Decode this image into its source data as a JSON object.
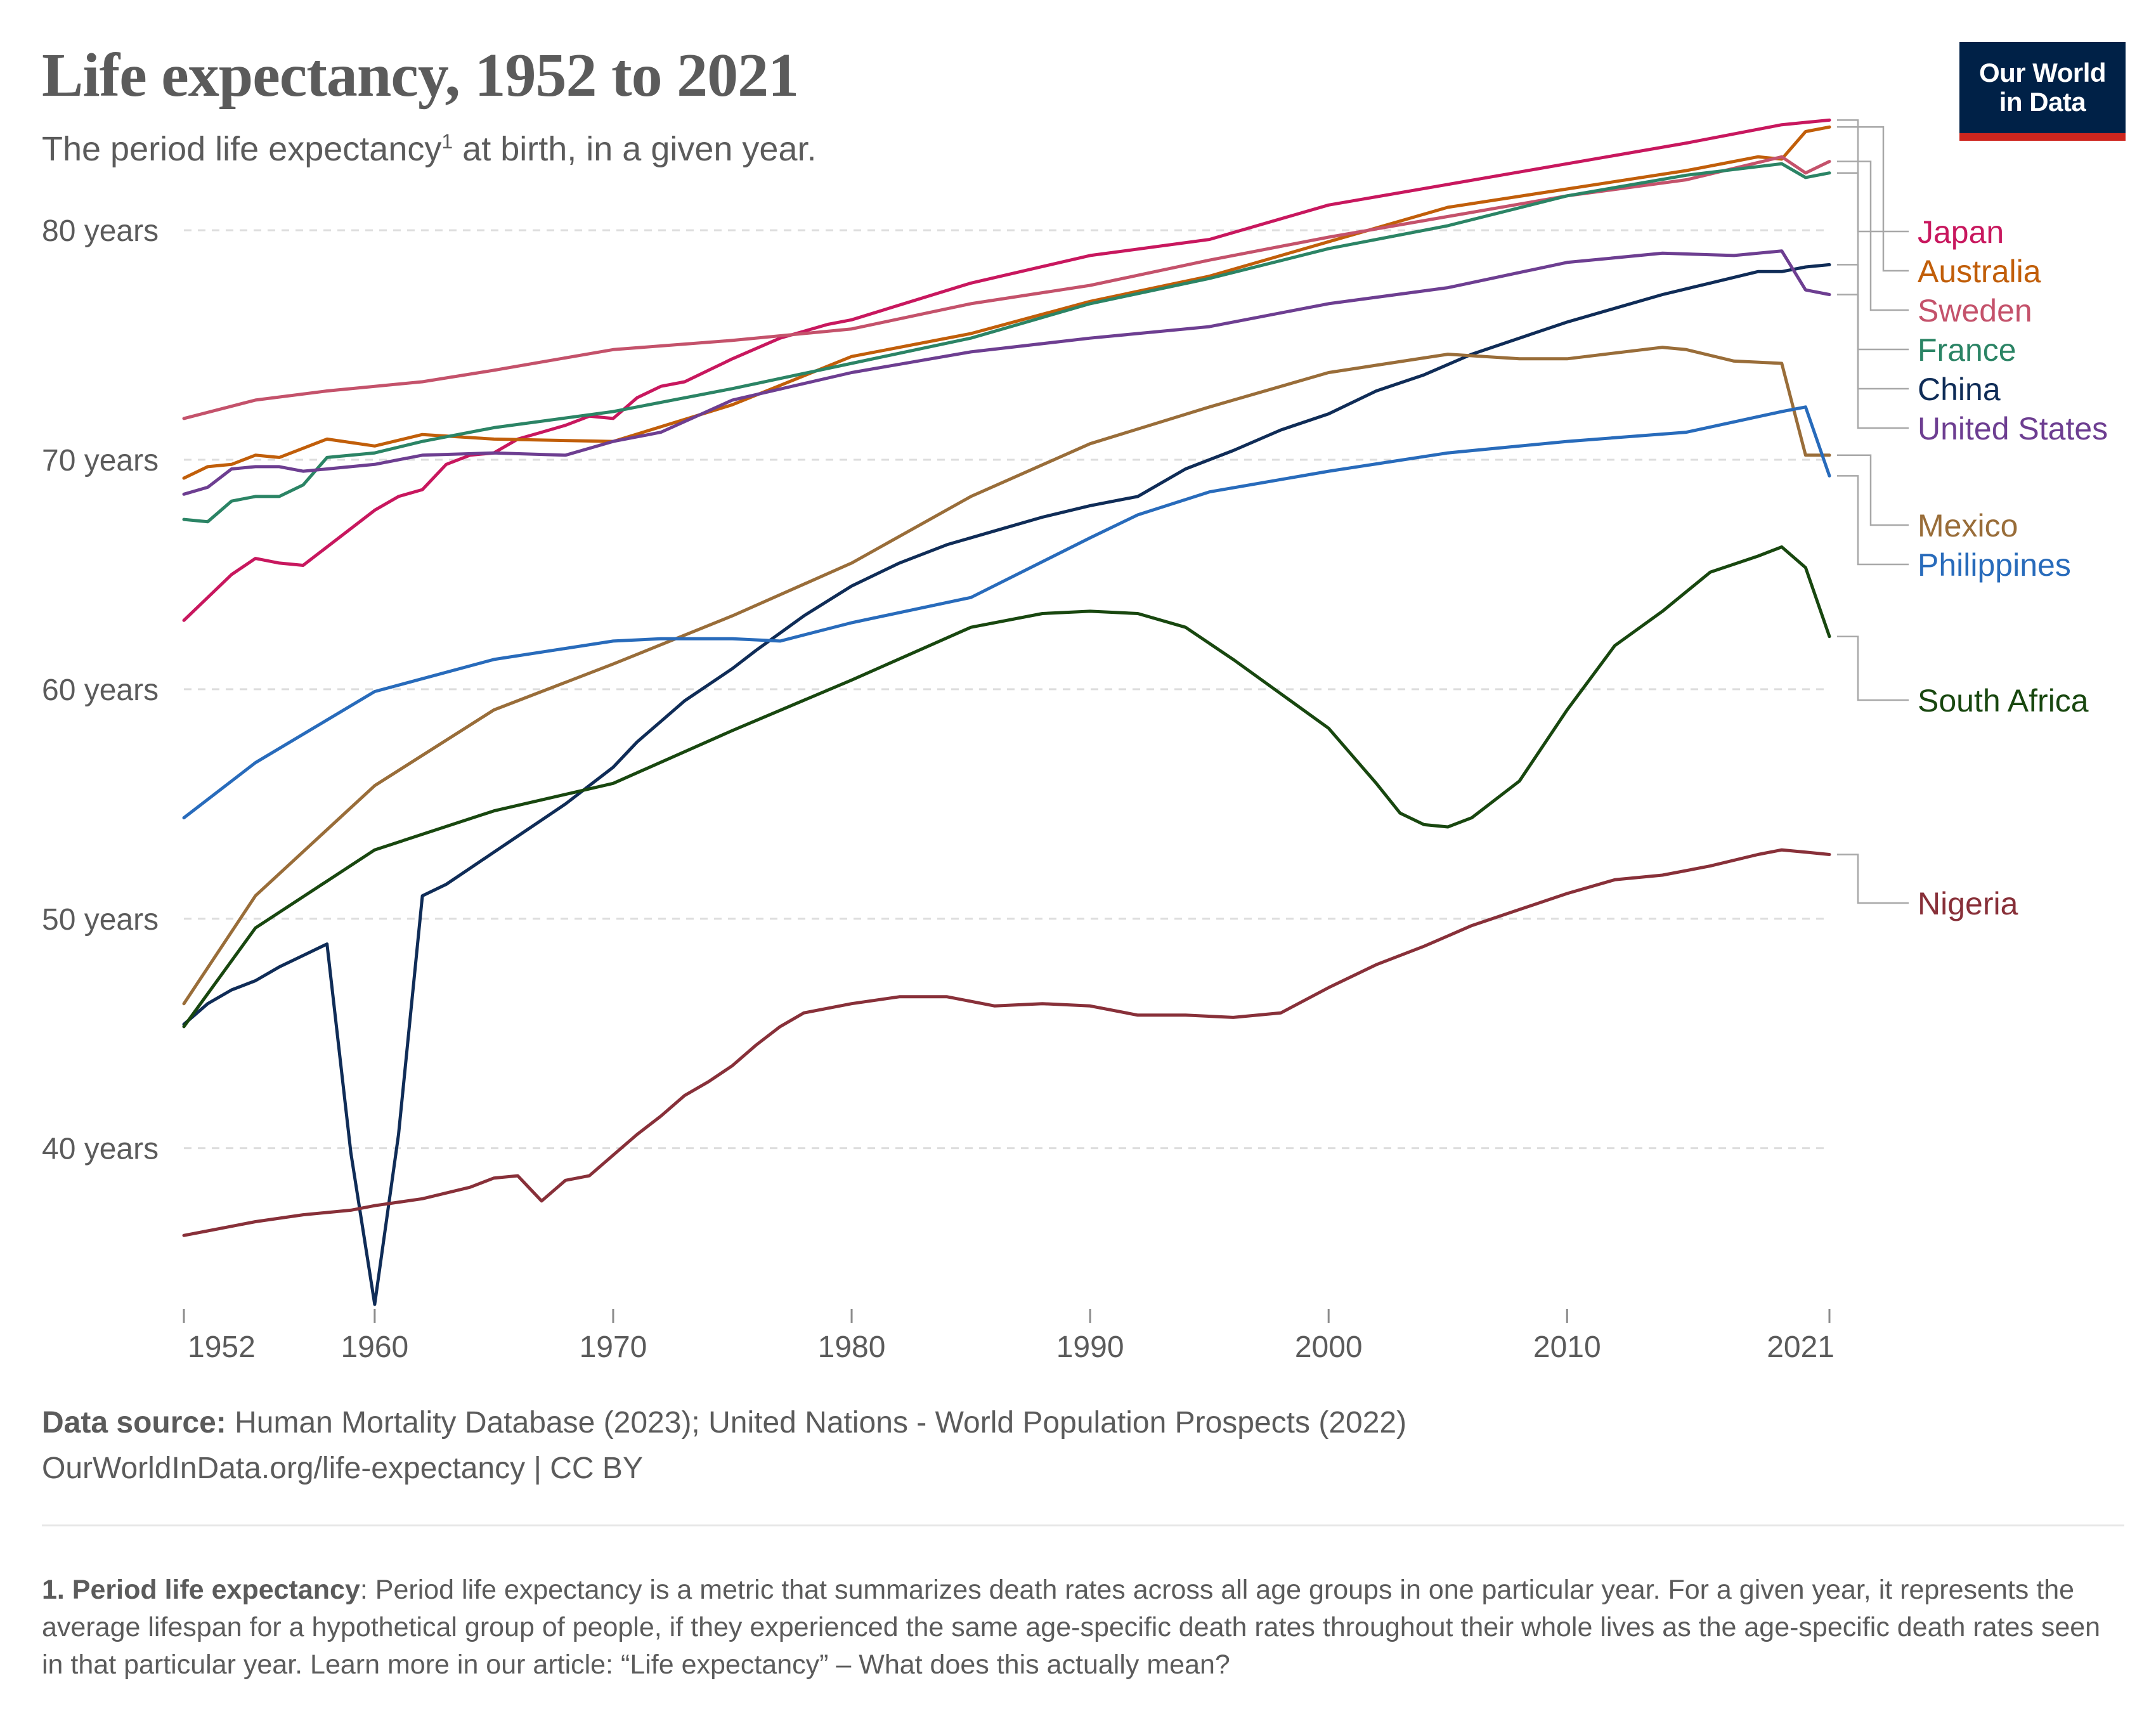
{
  "header": {
    "title": "Life expectancy, 1952 to 2021",
    "subtitle_prefix": "The period life expectancy",
    "subtitle_sup": "1",
    "subtitle_suffix": " at birth, in a given year.",
    "logo_line1": "Our World",
    "logo_line2": "in Data"
  },
  "footer": {
    "source_label": "Data source:",
    "source_text": " Human Mortality Database (2023); United Nations - World Population Prospects (2022)",
    "url_text": "OurWorldInData.org/life-expectancy | CC BY",
    "note_label": "1. Period life expectancy",
    "note_text": ": Period life expectancy is a metric that summarizes death rates across all age groups in one particular year. For a given year, it represents the average lifespan for a hypothetical group of people, if they experienced the same age-specific death rates throughout their whole lives as the age-specific death rates seen in that particular year. Learn more in our article: “Life expectancy” – What does this actually mean?"
  },
  "colors": {
    "grid": "#dddddd",
    "axis_text": "#5b5b5b",
    "logo_bg": "#002147",
    "logo_accent": "#ce261e"
  },
  "chart_data": {
    "type": "line",
    "title": "Life expectancy, 1952 to 2021",
    "subtitle": "The period life expectancy¹ at birth, in a given year.",
    "xlabel": "",
    "ylabel": "",
    "xlim": [
      1952,
      2021
    ],
    "ylim": [
      33,
      86
    ],
    "x_ticks": [
      1952,
      1960,
      1970,
      1980,
      1990,
      2000,
      2010,
      2021
    ],
    "y_ticks": [
      40,
      50,
      60,
      70,
      80
    ],
    "y_tick_labels": [
      "40 years",
      "50 years",
      "60 years",
      "70 years",
      "80 years"
    ],
    "grid": "horizontal dashed",
    "legend": "right, labels at line ends",
    "series": [
      {
        "name": "Japan",
        "color": "#c8175e",
        "x": [
          1952,
          1954,
          1955,
          1956,
          1957,
          1960,
          1961,
          1962,
          1963,
          1964,
          1965,
          1966,
          1967,
          1968,
          1969,
          1970,
          1971,
          1972,
          1973,
          1974,
          1975,
          1977,
          1978,
          1979,
          1980,
          1985,
          1990,
          1995,
          2000,
          2005,
          2010,
          2015,
          2019,
          2020,
          2021
        ],
        "y": [
          63.0,
          65.0,
          65.7,
          65.5,
          65.4,
          67.8,
          68.4,
          68.7,
          69.8,
          70.2,
          70.3,
          70.9,
          71.2,
          71.5,
          71.9,
          71.8,
          72.7,
          73.2,
          73.4,
          73.9,
          74.4,
          75.3,
          75.6,
          75.9,
          76.1,
          77.7,
          78.9,
          79.6,
          81.1,
          82.0,
          82.9,
          83.8,
          84.6,
          84.7,
          84.8
        ]
      },
      {
        "name": "Australia",
        "color": "#c15e09",
        "x": [
          1952,
          1953,
          1954,
          1955,
          1956,
          1958,
          1960,
          1962,
          1965,
          1970,
          1975,
          1980,
          1985,
          1990,
          1995,
          2000,
          2005,
          2010,
          2015,
          2018,
          2019,
          2020,
          2021
        ],
        "y": [
          69.2,
          69.7,
          69.8,
          70.2,
          70.1,
          70.9,
          70.6,
          71.1,
          70.9,
          70.8,
          72.4,
          74.5,
          75.5,
          76.9,
          78.0,
          79.5,
          81.0,
          81.8,
          82.6,
          83.2,
          83.1,
          84.3,
          84.5
        ]
      },
      {
        "name": "Sweden",
        "color": "#c4526b",
        "x": [
          1952,
          1955,
          1958,
          1960,
          1962,
          1965,
          1970,
          1975,
          1980,
          1985,
          1990,
          1995,
          2000,
          2005,
          2010,
          2015,
          2019,
          2020,
          2021
        ],
        "y": [
          71.8,
          72.6,
          73.0,
          73.2,
          73.4,
          73.9,
          74.8,
          75.2,
          75.7,
          76.8,
          77.6,
          78.7,
          79.7,
          80.6,
          81.5,
          82.2,
          83.2,
          82.5,
          83.0
        ]
      },
      {
        "name": "France",
        "color": "#2b8465",
        "x": [
          1952,
          1953,
          1954,
          1955,
          1956,
          1957,
          1958,
          1960,
          1962,
          1965,
          1970,
          1975,
          1980,
          1985,
          1990,
          1995,
          2000,
          2005,
          2010,
          2015,
          2019,
          2020,
          2021
        ],
        "y": [
          67.4,
          67.3,
          68.2,
          68.4,
          68.4,
          68.9,
          70.1,
          70.3,
          70.8,
          71.4,
          72.1,
          73.1,
          74.2,
          75.3,
          76.8,
          77.9,
          79.2,
          80.2,
          81.5,
          82.4,
          82.9,
          82.3,
          82.5
        ]
      },
      {
        "name": "China",
        "color": "#0f2c57",
        "x": [
          1952,
          1953,
          1954,
          1955,
          1956,
          1957,
          1958,
          1959,
          1960,
          1961,
          1962,
          1963,
          1964,
          1965,
          1966,
          1967,
          1968,
          1969,
          1970,
          1971,
          1972,
          1973,
          1974,
          1975,
          1976,
          1978,
          1980,
          1982,
          1984,
          1986,
          1988,
          1990,
          1992,
          1994,
          1996,
          1998,
          2000,
          2002,
          2004,
          2006,
          2008,
          2010,
          2012,
          2014,
          2016,
          2018,
          2019,
          2020,
          2021
        ],
        "y": [
          45.4,
          46.3,
          46.9,
          47.3,
          47.9,
          48.4,
          48.9,
          39.8,
          33.2,
          40.6,
          51.0,
          51.5,
          52.2,
          52.9,
          53.6,
          54.3,
          55.0,
          55.8,
          56.6,
          57.7,
          58.6,
          59.5,
          60.2,
          60.9,
          61.7,
          63.2,
          64.5,
          65.5,
          66.3,
          66.9,
          67.5,
          68.0,
          68.4,
          69.6,
          70.4,
          71.3,
          72.0,
          73.0,
          73.7,
          74.6,
          75.3,
          76.0,
          76.6,
          77.2,
          77.7,
          78.2,
          78.2,
          78.4,
          78.5
        ]
      },
      {
        "name": "United States",
        "color": "#6d3e91",
        "x": [
          1952,
          1953,
          1954,
          1955,
          1956,
          1957,
          1958,
          1960,
          1962,
          1965,
          1968,
          1970,
          1972,
          1975,
          1980,
          1985,
          1990,
          1995,
          2000,
          2005,
          2010,
          2014,
          2017,
          2019,
          2020,
          2021
        ],
        "y": [
          68.5,
          68.8,
          69.6,
          69.7,
          69.7,
          69.5,
          69.6,
          69.8,
          70.2,
          70.3,
          70.2,
          70.8,
          71.2,
          72.6,
          73.8,
          74.7,
          75.3,
          75.8,
          76.8,
          77.5,
          78.6,
          79.0,
          78.9,
          79.1,
          77.4,
          77.2
        ]
      },
      {
        "name": "Mexico",
        "color": "#996d39",
        "x": [
          1952,
          1955,
          1960,
          1965,
          1970,
          1975,
          1980,
          1985,
          1990,
          1995,
          2000,
          2005,
          2008,
          2010,
          2014,
          2015,
          2017,
          2019,
          2020,
          2021
        ],
        "y": [
          46.3,
          51.0,
          55.8,
          59.1,
          61.1,
          63.2,
          65.5,
          68.4,
          70.7,
          72.3,
          73.8,
          74.6,
          74.4,
          74.4,
          74.9,
          74.8,
          74.3,
          74.2,
          70.2,
          70.2
        ]
      },
      {
        "name": "Philippines",
        "color": "#286bbb",
        "x": [
          1952,
          1955,
          1960,
          1965,
          1970,
          1972,
          1975,
          1977,
          1980,
          1985,
          1990,
          1992,
          1995,
          2000,
          2005,
          2010,
          2015,
          2019,
          2020,
          2021
        ],
        "y": [
          54.4,
          56.8,
          59.9,
          61.3,
          62.1,
          62.2,
          62.2,
          62.1,
          62.9,
          64.0,
          66.6,
          67.6,
          68.6,
          69.5,
          70.3,
          70.8,
          71.2,
          72.1,
          72.3,
          69.3
        ]
      },
      {
        "name": "South Africa",
        "color": "#18470f",
        "x": [
          1952,
          1955,
          1960,
          1965,
          1970,
          1975,
          1980,
          1985,
          1988,
          1990,
          1992,
          1994,
          1996,
          1998,
          2000,
          2002,
          2003,
          2004,
          2005,
          2006,
          2008,
          2010,
          2012,
          2014,
          2016,
          2018,
          2019,
          2020,
          2021
        ],
        "y": [
          45.3,
          49.6,
          53.0,
          54.7,
          55.9,
          58.2,
          60.4,
          62.7,
          63.3,
          63.4,
          63.3,
          62.7,
          61.3,
          59.8,
          58.3,
          55.9,
          54.6,
          54.1,
          54.0,
          54.4,
          56.0,
          59.1,
          61.9,
          63.4,
          65.1,
          65.8,
          66.2,
          65.3,
          62.3
        ]
      },
      {
        "name": "Nigeria",
        "color": "#883039",
        "x": [
          1952,
          1953,
          1955,
          1957,
          1959,
          1960,
          1962,
          1964,
          1965,
          1966,
          1967,
          1968,
          1969,
          1970,
          1971,
          1972,
          1973,
          1974,
          1975,
          1976,
          1977,
          1978,
          1980,
          1982,
          1984,
          1986,
          1988,
          1990,
          1992,
          1994,
          1996,
          1998,
          2000,
          2002,
          2004,
          2006,
          2008,
          2010,
          2012,
          2014,
          2016,
          2018,
          2019,
          2020,
          2021
        ],
        "y": [
          36.2,
          36.4,
          36.8,
          37.1,
          37.3,
          37.5,
          37.8,
          38.3,
          38.7,
          38.8,
          37.7,
          38.6,
          38.8,
          39.7,
          40.6,
          41.4,
          42.3,
          42.9,
          43.6,
          44.5,
          45.3,
          45.9,
          46.3,
          46.6,
          46.6,
          46.2,
          46.3,
          46.2,
          45.8,
          45.8,
          45.7,
          45.9,
          47.0,
          48.0,
          48.8,
          49.7,
          50.4,
          51.1,
          51.7,
          51.9,
          52.3,
          52.8,
          53.0,
          52.9,
          52.8
        ]
      }
    ]
  }
}
